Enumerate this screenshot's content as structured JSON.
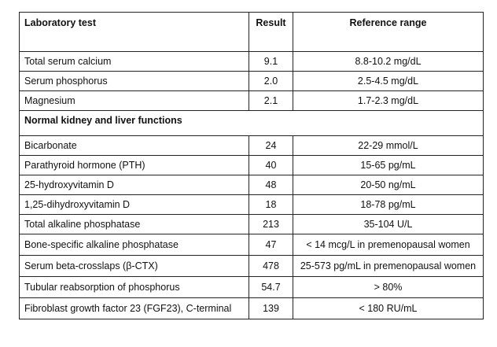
{
  "table": {
    "header": [
      "Laboratory test",
      "Result",
      "Reference range"
    ],
    "rows": [
      [
        "Total serum calcium",
        "9.1",
        "8.8-10.2 mg/dL"
      ],
      [
        "Serum phosphorus",
        "2.0",
        "2.5-4.5 mg/dL"
      ],
      [
        "Magnesium",
        "2.1",
        "1.7-2.3 mg/dL"
      ],
      [
        "Normal kidney and liver functions"
      ],
      [
        "Bicarbonate",
        "24",
        "22-29 mmol/L"
      ],
      [
        "Parathyroid hormone (PTH)",
        "40",
        "15-65 pg/mL"
      ],
      [
        "25-hydroxyvitamin D",
        "48",
        "20-50 ng/mL"
      ],
      [
        "1,25-dihydroxyvitamin D",
        "18",
        "18-78 pg/mL"
      ],
      [
        "Total alkaline phosphatase",
        "213",
        "35-104 U/L"
      ],
      [
        "Bone-specific alkaline phosphatase",
        "47",
        "< 14 mcg/L in premenopausal women"
      ],
      [
        "Serum beta-crosslaps (β-CTX)",
        "478",
        "25-573 pg/mL in premenopausal women"
      ],
      [
        "Tubular reabsorption of phosphorus",
        "54.7",
        "> 80%"
      ],
      [
        "Fibroblast growth factor 23 (FGF23), C-terminal",
        "139",
        "< 180 RU/mL"
      ]
    ]
  }
}
